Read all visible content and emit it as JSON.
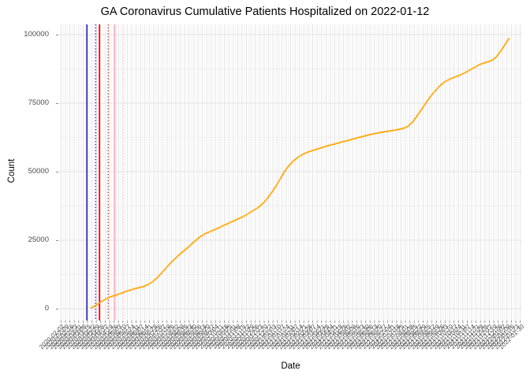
{
  "title": "GA Coronavirus Cumulative Patients Hospitalized on 2022-01-12",
  "chart_data": {
    "type": "scatter",
    "title": "GA Coronavirus Cumulative Patients Hospitalized on 2022-01-12",
    "xlabel": "Date",
    "ylabel": "Count",
    "ylim": [
      0,
      100000
    ],
    "y_ticks": [
      0,
      25000,
      50000,
      75000,
      100000
    ],
    "y_tick_labels": [
      "0",
      "25000",
      "50000",
      "75000",
      "100000"
    ],
    "x_domain": [
      "2020-01-30",
      "2022-02-02"
    ],
    "grid": true,
    "legend_position": "none",
    "colors": {
      "series": "#FFA500",
      "grid_major": "#e3e3e3",
      "grid_minor": "#f1f1f1",
      "tick_label": "#4d4d4d",
      "event_blue": "#2020c8",
      "event_red": "#dd0000",
      "event_dark_red": "#c03030",
      "event_pink": "#ffb6c1",
      "event_light_pink": "#ffd3dc"
    },
    "event_lines": [
      {
        "name": "blue-solid-line",
        "date": "2020-03-14",
        "color": "#2020c8",
        "style": "solid",
        "width": 1.6
      },
      {
        "name": "blue-dotted-line",
        "date": "2020-03-28",
        "color": "#2020c8",
        "style": "dotted",
        "width": 1.5
      },
      {
        "name": "red-solid-line",
        "date": "2020-04-03",
        "color": "#dd0000",
        "style": "solid",
        "width": 1.6
      },
      {
        "name": "red-dotted-line",
        "date": "2020-04-17",
        "color": "#c03030",
        "style": "dotted",
        "width": 1.5
      },
      {
        "name": "pink-solid-line",
        "date": "2020-04-27",
        "color": "#ffb6c1",
        "style": "solid",
        "width": 2.2
      },
      {
        "name": "pink-dotted-line",
        "date": "2020-05-11",
        "color": "#ffd3dc",
        "style": "dotted",
        "width": 1.5
      }
    ],
    "x_tick_labels": [
      "2020-02-02",
      "2020-02-09",
      "2020-02-16",
      "2020-02-23",
      "2020-03-01",
      "2020-03-08",
      "2020-03-15",
      "2020-03-22",
      "2020-03-29",
      "2020-04-05",
      "2020-04-12",
      "2020-04-19",
      "2020-04-26",
      "2020-05-03",
      "2020-05-10",
      "2020-05-17",
      "2020-05-24",
      "2020-05-31",
      "2020-06-07",
      "2020-06-14",
      "2020-06-21",
      "2020-06-28",
      "2020-07-05",
      "2020-07-12",
      "2020-07-19",
      "2020-07-26",
      "2020-08-02",
      "2020-08-09",
      "2020-08-16",
      "2020-08-23",
      "2020-08-30",
      "2020-09-06",
      "2020-09-13",
      "2020-09-20",
      "2020-09-27",
      "2020-10-04",
      "2020-10-11",
      "2020-10-18",
      "2020-10-25",
      "2020-11-01",
      "2020-11-08",
      "2020-11-15",
      "2020-11-22",
      "2020-11-29",
      "2020-12-06",
      "2020-12-13",
      "2020-12-20",
      "2020-12-27",
      "2021-01-03",
      "2021-01-10",
      "2021-01-17",
      "2021-01-24",
      "2021-01-31",
      "2021-02-07",
      "2021-02-14",
      "2021-02-21",
      "2021-02-28",
      "2021-03-07",
      "2021-03-14",
      "2021-03-21",
      "2021-03-28",
      "2021-04-04",
      "2021-04-11",
      "2021-04-18",
      "2021-04-25",
      "2021-05-02",
      "2021-05-09",
      "2021-05-16",
      "2021-05-23",
      "2021-05-30",
      "2021-06-06",
      "2021-06-13",
      "2021-06-20",
      "2021-06-27",
      "2021-07-04",
      "2021-07-11",
      "2021-07-18",
      "2021-07-25",
      "2021-08-01",
      "2021-08-08",
      "2021-08-15",
      "2021-08-22",
      "2021-08-29",
      "2021-09-05",
      "2021-09-12",
      "2021-09-19",
      "2021-09-26",
      "2021-10-03",
      "2021-10-10",
      "2021-10-17",
      "2021-10-24",
      "2021-10-31",
      "2021-11-07",
      "2021-11-14",
      "2021-11-21",
      "2021-11-28",
      "2021-12-05",
      "2021-12-12",
      "2021-12-19",
      "2021-12-26",
      "2022-01-02",
      "2022-01-09",
      "2022-01-16",
      "2022-01-23",
      "2022-01-30"
    ],
    "series": [
      {
        "name": "cumulative-patients-hospitalized",
        "color": "#FFA500",
        "points": [
          [
            "2020-03-21",
            300
          ],
          [
            "2020-03-28",
            1200
          ],
          [
            "2020-04-03",
            2100
          ],
          [
            "2020-04-10",
            3100
          ],
          [
            "2020-04-17",
            4000
          ],
          [
            "2020-04-24",
            4600
          ],
          [
            "2020-05-01",
            5100
          ],
          [
            "2020-05-08",
            5700
          ],
          [
            "2020-05-15",
            6300
          ],
          [
            "2020-05-22",
            6800
          ],
          [
            "2020-05-29",
            7300
          ],
          [
            "2020-06-05",
            7700
          ],
          [
            "2020-06-12",
            8100
          ],
          [
            "2020-06-19",
            8800
          ],
          [
            "2020-06-26",
            9800
          ],
          [
            "2020-07-03",
            11200
          ],
          [
            "2020-07-10",
            12900
          ],
          [
            "2020-07-17",
            14700
          ],
          [
            "2020-07-24",
            16500
          ],
          [
            "2020-07-31",
            18100
          ],
          [
            "2020-08-07",
            19600
          ],
          [
            "2020-08-14",
            21000
          ],
          [
            "2020-08-21",
            22300
          ],
          [
            "2020-08-28",
            23800
          ],
          [
            "2020-09-04",
            25200
          ],
          [
            "2020-09-11",
            26500
          ],
          [
            "2020-09-18",
            27400
          ],
          [
            "2020-09-25",
            28100
          ],
          [
            "2020-10-02",
            28800
          ],
          [
            "2020-10-09",
            29500
          ],
          [
            "2020-10-16",
            30300
          ],
          [
            "2020-10-23",
            31000
          ],
          [
            "2020-10-30",
            31800
          ],
          [
            "2020-11-06",
            32500
          ],
          [
            "2020-11-13",
            33200
          ],
          [
            "2020-11-20",
            34000
          ],
          [
            "2020-11-27",
            35000
          ],
          [
            "2020-12-04",
            36000
          ],
          [
            "2020-12-11",
            37000
          ],
          [
            "2020-12-18",
            38400
          ],
          [
            "2020-12-25",
            40200
          ],
          [
            "2021-01-01",
            42400
          ],
          [
            "2021-01-08",
            44800
          ],
          [
            "2021-01-15",
            47500
          ],
          [
            "2021-01-22",
            50300
          ],
          [
            "2021-01-29",
            52400
          ],
          [
            "2021-02-05",
            54000
          ],
          [
            "2021-02-12",
            55300
          ],
          [
            "2021-02-19",
            56300
          ],
          [
            "2021-02-26",
            57000
          ],
          [
            "2021-03-05",
            57600
          ],
          [
            "2021-03-12",
            58100
          ],
          [
            "2021-03-19",
            58600
          ],
          [
            "2021-03-26",
            59100
          ],
          [
            "2021-04-02",
            59600
          ],
          [
            "2021-04-09",
            60000
          ],
          [
            "2021-04-16",
            60400
          ],
          [
            "2021-04-23",
            60900
          ],
          [
            "2021-04-30",
            61300
          ],
          [
            "2021-05-07",
            61700
          ],
          [
            "2021-05-14",
            62200
          ],
          [
            "2021-05-21",
            62600
          ],
          [
            "2021-05-28",
            63000
          ],
          [
            "2021-06-04",
            63400
          ],
          [
            "2021-06-11",
            63800
          ],
          [
            "2021-06-18",
            64100
          ],
          [
            "2021-06-25",
            64400
          ],
          [
            "2021-07-02",
            64700
          ],
          [
            "2021-07-09",
            64900
          ],
          [
            "2021-07-16",
            65200
          ],
          [
            "2021-07-23",
            65500
          ],
          [
            "2021-07-30",
            65900
          ],
          [
            "2021-08-06",
            66700
          ],
          [
            "2021-08-13",
            68300
          ],
          [
            "2021-08-20",
            70500
          ],
          [
            "2021-08-27",
            72800
          ],
          [
            "2021-09-03",
            75200
          ],
          [
            "2021-09-10",
            77500
          ],
          [
            "2021-09-17",
            79400
          ],
          [
            "2021-09-24",
            81200
          ],
          [
            "2021-10-01",
            82600
          ],
          [
            "2021-10-08",
            83500
          ],
          [
            "2021-10-15",
            84200
          ],
          [
            "2021-10-22",
            84800
          ],
          [
            "2021-10-29",
            85500
          ],
          [
            "2021-11-05",
            86300
          ],
          [
            "2021-11-12",
            87200
          ],
          [
            "2021-11-19",
            88100
          ],
          [
            "2021-11-26",
            89000
          ],
          [
            "2021-12-03",
            89600
          ],
          [
            "2021-12-10",
            90100
          ],
          [
            "2021-12-17",
            90700
          ],
          [
            "2021-12-24",
            92100
          ],
          [
            "2021-12-31",
            94300
          ],
          [
            "2022-01-07",
            96800
          ],
          [
            "2022-01-12",
            98500
          ]
        ]
      }
    ]
  }
}
